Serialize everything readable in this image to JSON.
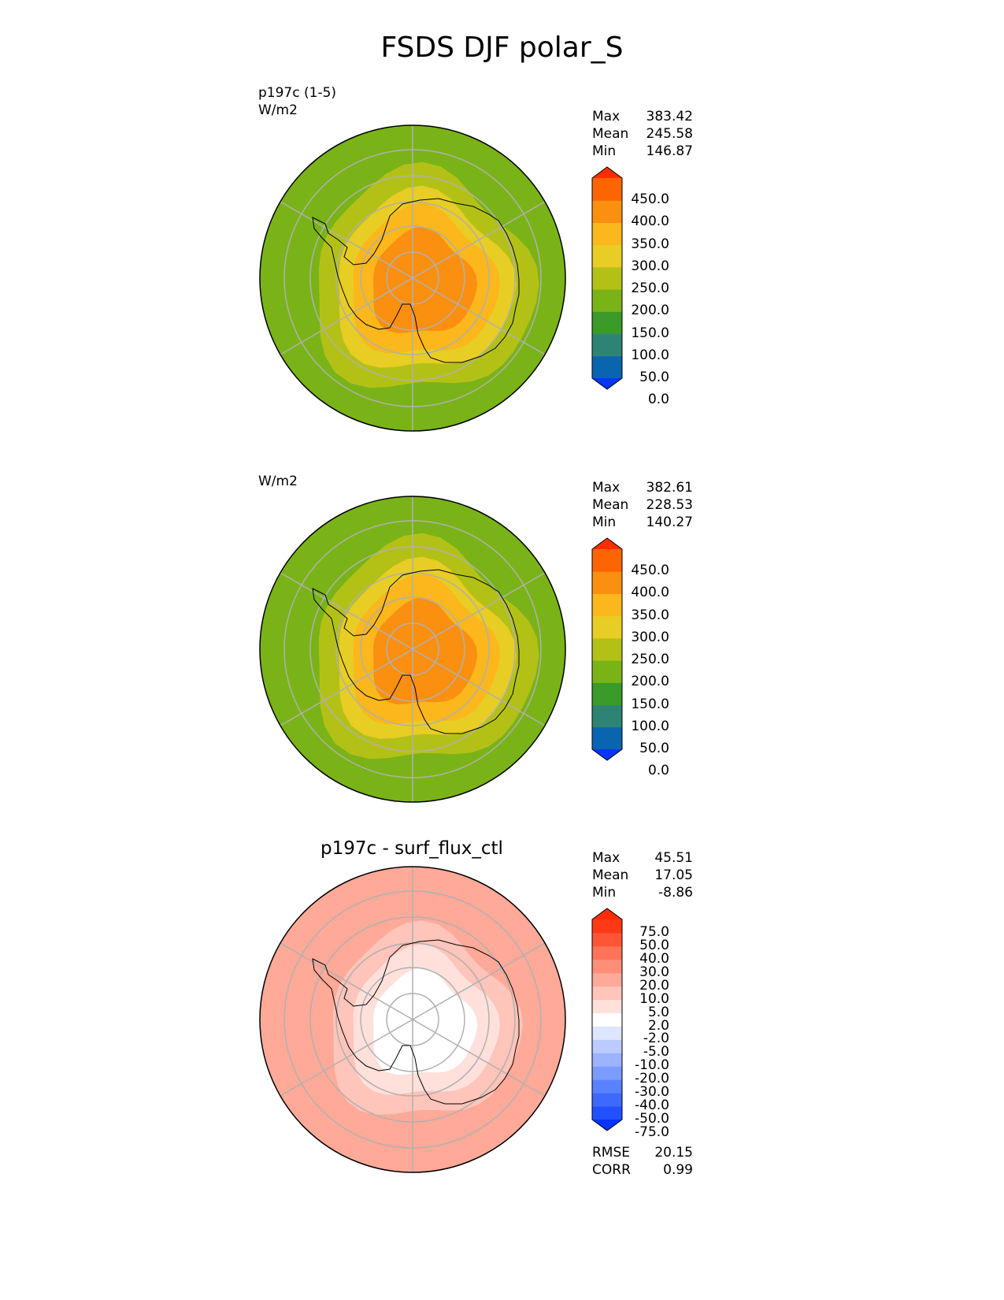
{
  "title": "FSDS DJF polar_S",
  "panels": [
    {
      "labels": [
        "p197c (1-5)",
        "W/m2"
      ],
      "subtitle": "",
      "stats": [
        {
          "name": "Max",
          "value": "383.42"
        },
        {
          "name": "Mean",
          "value": "245.58"
        },
        {
          "name": "Min",
          "value": "146.87"
        }
      ],
      "colorbar": {
        "tick_labels": [
          "450.0",
          "400.0",
          "350.0",
          "300.0",
          "250.0",
          "200.0",
          "150.0",
          "100.0",
          "50.0",
          "0.0"
        ],
        "colors": [
          "#0535ff",
          "#0a64b0",
          "#2e8474",
          "#3a9a2a",
          "#7ab317",
          "#b3c117",
          "#e8cd24",
          "#fbb71c",
          "#fb8f0f",
          "#fd6500",
          "#fe2d00"
        ]
      }
    },
    {
      "labels": [
        "W/m2"
      ],
      "subtitle": "",
      "stats": [
        {
          "name": "Max",
          "value": "382.61"
        },
        {
          "name": "Mean",
          "value": "228.53"
        },
        {
          "name": "Min",
          "value": "140.27"
        }
      ],
      "colorbar": {
        "tick_labels": [
          "450.0",
          "400.0",
          "350.0",
          "300.0",
          "250.0",
          "200.0",
          "150.0",
          "100.0",
          "50.0",
          "0.0"
        ],
        "colors": [
          "#0535ff",
          "#0a64b0",
          "#2e8474",
          "#3a9a2a",
          "#7ab317",
          "#b3c117",
          "#e8cd24",
          "#fbb71c",
          "#fb8f0f",
          "#fd6500",
          "#fe2d00"
        ]
      }
    },
    {
      "labels": [],
      "subtitle": "p197c - surf_flux_ctl",
      "stats": [
        {
          "name": "Max",
          "value": "45.51"
        },
        {
          "name": "Mean",
          "value": "17.05"
        },
        {
          "name": "Min",
          "value": "-8.86"
        }
      ],
      "colorbar": {
        "tick_labels": [
          "75.0",
          "50.0",
          "40.0",
          "30.0",
          "20.0",
          "10.0",
          "5.0",
          "2.0",
          "-2.0",
          "-5.0",
          "-10.0",
          "-20.0",
          "-30.0",
          "-40.0",
          "-50.0",
          "-75.0"
        ],
        "colors": [
          "#0535ff",
          "#2250ff",
          "#3e69ff",
          "#5a82ff",
          "#7a9bff",
          "#9cb3ff",
          "#bccbff",
          "#dde5ff",
          "#ffffff",
          "#ffe0db",
          "#ffc4ba",
          "#ffa999",
          "#ff8e78",
          "#ff7358",
          "#ff5537",
          "#ff3816",
          "#fe2d00"
        ]
      },
      "metrics": [
        {
          "name": "RMSE",
          "value": "20.15"
        },
        {
          "name": "CORR",
          "value": "0.99"
        }
      ]
    }
  ],
  "maps": [
    {
      "ocean": "#7ab317",
      "rings": [
        "#b3c117",
        "#e8cd24",
        "#fbb71c",
        "#fb8f0f"
      ]
    },
    {
      "ocean": "#7ab317",
      "rings": [
        "#b3c117",
        "#e8cd24",
        "#fbb71c",
        "#fb8f0f"
      ]
    },
    {
      "ocean": "#ffa999",
      "rings": [
        "#ffc4ba",
        "#ffe0db",
        "#ffffff"
      ]
    }
  ]
}
